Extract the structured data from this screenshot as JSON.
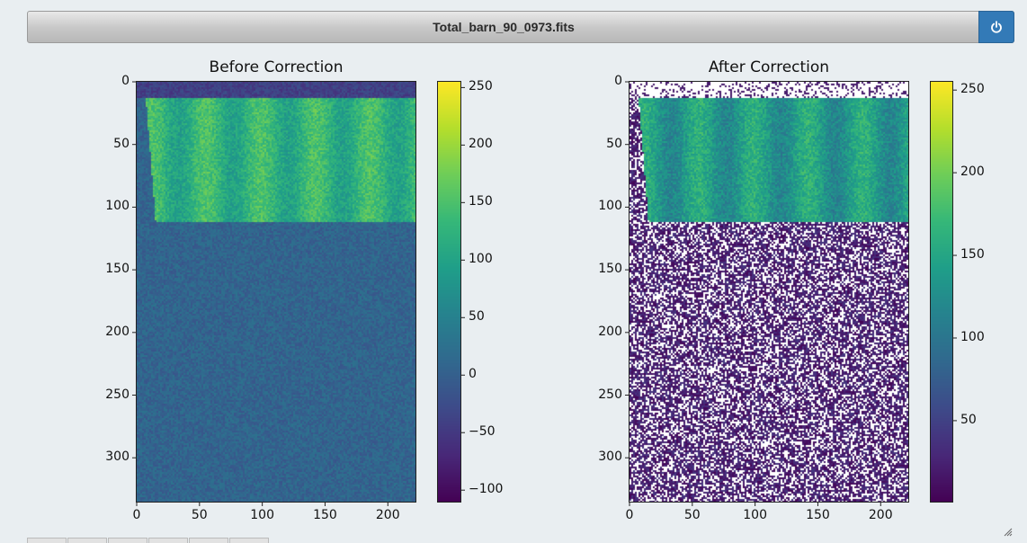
{
  "window": {
    "title": "Total_barn_90_0973.fits",
    "power_icon": "power-icon"
  },
  "colors": {
    "accent": "#337ab7",
    "background": "#e9eef1"
  },
  "chart_data": [
    {
      "type": "heatmap",
      "title": "Before Correction",
      "colormap": "viridis",
      "x_ticks": [
        0,
        50,
        100,
        150,
        200
      ],
      "y_ticks": [
        0,
        50,
        100,
        150,
        200,
        250,
        300
      ],
      "xlim": [
        0,
        222
      ],
      "ylim": [
        335,
        0
      ],
      "colorbar": {
        "ticks": [
          250,
          200,
          150,
          100,
          50,
          0,
          -50,
          -100
        ],
        "tick_labels": [
          "250",
          "200",
          "150",
          "100",
          "50",
          "0",
          "−50",
          "−100"
        ],
        "range": [
          -110,
          255
        ]
      }
    },
    {
      "type": "heatmap",
      "title": "After Correction",
      "colormap": "viridis",
      "x_ticks": [
        0,
        50,
        100,
        150,
        200
      ],
      "y_ticks": [
        0,
        50,
        100,
        150,
        200,
        250,
        300
      ],
      "xlim": [
        0,
        222
      ],
      "ylim": [
        335,
        0
      ],
      "colorbar": {
        "ticks": [
          250,
          200,
          150,
          100,
          50
        ],
        "tick_labels": [
          "250",
          "200",
          "150",
          "100",
          "50"
        ],
        "range": [
          1,
          255
        ]
      }
    }
  ]
}
